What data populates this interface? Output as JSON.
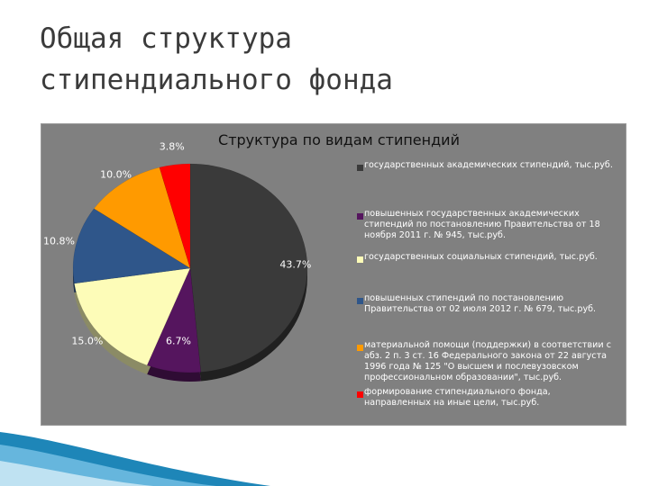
{
  "slide": {
    "title": "Общая структура\nстипендиального фонда"
  },
  "chart_data": {
    "type": "pie",
    "title": "Структура  по видам стипендий",
    "legend_position": "right",
    "slices": [
      {
        "label": "государственных академических стипендий, тыс.руб.",
        "value": 43.7,
        "value_label": "43.7%",
        "color": "#3a3a3a"
      },
      {
        "label": "повышенных государственных академических стипендий по постановлению Правительства от 18 ноября 2011 г. № 945, тыс.руб.",
        "value": 6.7,
        "value_label": "6.7%",
        "color": "#55155e"
      },
      {
        "label": "государственных социальных стипендий, тыс.руб.",
        "value": 15.0,
        "value_label": "15.0%",
        "color": "#fdfcb8"
      },
      {
        "label": "повышенных стипендий по постановлению Правительства от 02 июля 2012 г. № 679, тыс.руб.",
        "value": 10.8,
        "value_label": "10.8%",
        "color": "#2f568a"
      },
      {
        "label": "материальной помощи (поддержки) в соответствии с абз. 2 п. 3 ст. 16 Федерального закона от 22 августа 1996 года № 125 \"О высшем и послевузовском профессиональном образовании\", тыс.руб.",
        "value": 10.0,
        "value_label": "10.0%",
        "color": "#ff9a00"
      },
      {
        "label": "формирование стипендиального фонда, направленных на иные цели, тыс.руб.",
        "value": 3.8,
        "value_label": "3.8%",
        "color": "#ff0000"
      }
    ]
  }
}
